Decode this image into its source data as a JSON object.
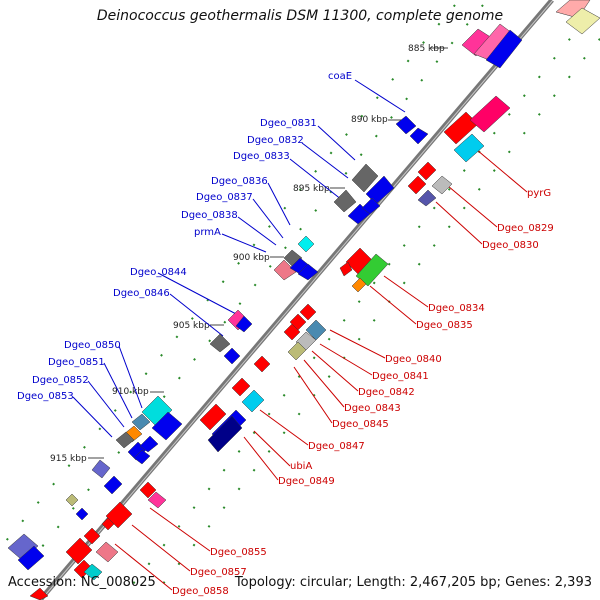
{
  "title": "Deinococcus geothermalis DSM 11300, complete genome",
  "footer": {
    "accession": "Accession: NC_008025",
    "summary": "Topology: circular; Length: 2,467,205 bp; Genes: 2,393"
  },
  "ticks": [
    "885 kbp",
    "890 kbp",
    "895 kbp",
    "900 kbp",
    "905 kbp",
    "910 kbp",
    "915 kbp"
  ],
  "labels_blue": [
    "coaE",
    "Dgeo_0831",
    "Dgeo_0832",
    "Dgeo_0833",
    "Dgeo_0836",
    "Dgeo_0837",
    "Dgeo_0838",
    "prmA",
    "Dgeo_0844",
    "Dgeo_0846",
    "Dgeo_0850",
    "Dgeo_0851",
    "Dgeo_0852",
    "Dgeo_0853"
  ],
  "labels_red": [
    "pyrG",
    "Dgeo_0829",
    "Dgeo_0830",
    "Dgeo_0834",
    "Dgeo_0835",
    "Dgeo_0840",
    "Dgeo_0841",
    "Dgeo_0842",
    "Dgeo_0843",
    "Dgeo_0845",
    "Dgeo_0847",
    "ubiA",
    "Dgeo_0849",
    "Dgeo_0855",
    "Dgeo_0857",
    "Dgeo_0858"
  ],
  "colors": {
    "label_blue": "#0000cc",
    "label_red": "#cc0000",
    "backbone": "#777777",
    "tick_green": "#2a8a2a"
  }
}
